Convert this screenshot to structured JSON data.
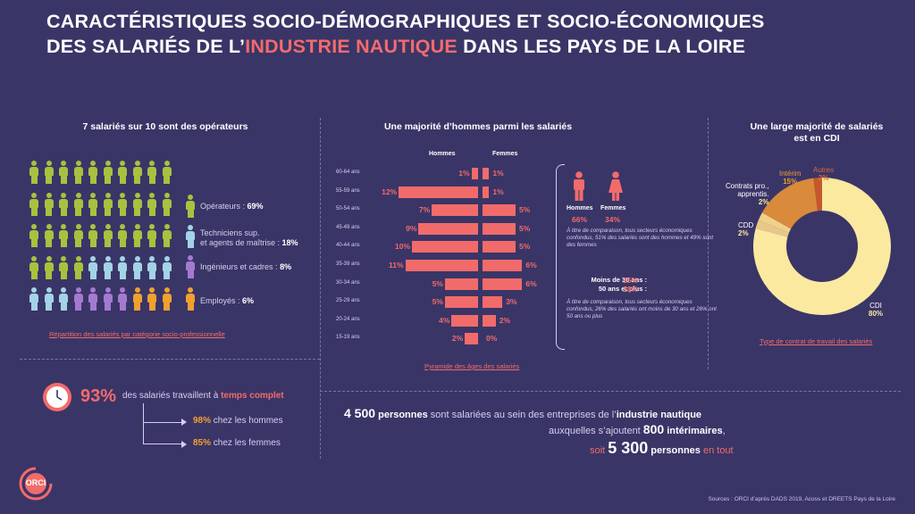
{
  "title": {
    "line1": "CARACTÉRISTIQUES SOCIO-DÉMOGRAPHIQUES ET SOCIO-ÉCONOMIQUES",
    "line2_pre": "DES SALARIÉS DE L’",
    "line2_hl": "INDUSTRIE NAUTIQUE",
    "line2_post": " DANS LES PAYS DE LA LOIRE"
  },
  "colors": {
    "background": "#3a3567",
    "accent": "#f26b6b",
    "operateurs": "#a8c23f",
    "techniciens": "#a3d3e6",
    "ingenieurs": "#a47ad1",
    "employes": "#f0a030"
  },
  "operateurs_section": {
    "heading": "7 salariés sur 10 sont des opérateurs",
    "grid_rows": [
      [
        "o",
        "o",
        "o",
        "o",
        "o",
        "o",
        "o",
        "o",
        "o",
        "o"
      ],
      [
        "o",
        "o",
        "o",
        "o",
        "o",
        "o",
        "o",
        "o",
        "o",
        "o"
      ],
      [
        "o",
        "o",
        "o",
        "o",
        "o",
        "o",
        "o",
        "o",
        "o",
        "o"
      ],
      [
        "o",
        "o",
        "o",
        "o",
        "t",
        "t",
        "t",
        "t",
        "t",
        "t"
      ],
      [
        "t",
        "t",
        "t",
        "i",
        "i",
        "i",
        "i",
        "e",
        "e",
        "e"
      ]
    ],
    "legend": [
      {
        "key": "o",
        "label": "Opérateurs : ",
        "value": "69%"
      },
      {
        "key": "t",
        "label": "Techniciens sup.",
        "label2": "et agents de maîtrise : ",
        "value": "18%"
      },
      {
        "key": "i",
        "label": "Ingénieurs et cadres : ",
        "value": "8%"
      },
      {
        "key": "e",
        "label": "Employés : ",
        "value": "6%"
      }
    ],
    "caption": "Répartition des salariés par catégorie socio-professionnelle"
  },
  "pyramid_section": {
    "heading": "Une majorité d’hommes parmi les salariés",
    "col_men": "Hommes",
    "col_women": "Femmes",
    "caption": "Pyramide des âges des salariés",
    "chart_data": {
      "type": "bar",
      "categories": [
        "60-64 ans",
        "55-59 ans",
        "50-54 ans",
        "45-49 ans",
        "40-44 ans",
        "35-39 ans",
        "30-34 ans",
        "25-29 ans",
        "20-24 ans",
        "15-19 ans"
      ],
      "series": [
        {
          "name": "Hommes",
          "values": [
            1,
            12,
            7,
            9,
            10,
            11,
            5,
            5,
            4,
            2
          ],
          "labels": [
            "1%",
            "12%",
            "7%",
            "9%",
            "10%",
            "11%",
            "5%",
            "5%",
            "4%",
            "2%"
          ]
        },
        {
          "name": "Femmes",
          "values": [
            1,
            1,
            5,
            5,
            5,
            6,
            6,
            3,
            2,
            0
          ],
          "labels": [
            "1%",
            "1%",
            "5%",
            "5%",
            "5%",
            "6%",
            "6%",
            "3%",
            "2%",
            "0%"
          ]
        }
      ]
    },
    "gender": {
      "men_label": "Hommes",
      "men_value": "66%",
      "women_label": "Femmes",
      "women_value": "34%"
    },
    "note1": "À titre de comparaison, tous secteurs économiques confondus, 51% des salariés sont des hommes et 49% sont des femmes",
    "age_stats": {
      "under30_label": "Moins de 30 ans :",
      "under30_value": "15%",
      "over50_label": "50 ans et plus :",
      "over50_value": "28%"
    },
    "note2": "À titre de comparaison, tous secteurs économiques confondus, 26% des salariés ont moins de 30 ans et 26% ont 50 ans ou plus"
  },
  "cdi_section": {
    "heading_line1": "Une large majorité de salariés",
    "heading_line2": "est en CDI",
    "caption": "Type de contrat de travail des salariés",
    "chart_data": {
      "type": "pie",
      "categories": [
        "CDI",
        "CDD",
        "Contrats pro., apprentis.",
        "Intérim",
        "Autres"
      ],
      "values": [
        80,
        2,
        2,
        15,
        2
      ],
      "colors": [
        "#fbe9a0",
        "#e8c88a",
        "#f0d08a",
        "#d98a3a",
        "#c4572e"
      ],
      "labels": [
        {
          "name": "CDI",
          "value": "80%"
        },
        {
          "name": "CDD",
          "value": "2%"
        },
        {
          "name1": "Contrats pro.,",
          "name2": "apprentis.",
          "value": "2%"
        },
        {
          "name": "Intérim",
          "value": "15%"
        },
        {
          "name": "Autres",
          "value": "2%"
        }
      ]
    }
  },
  "temps_complet": {
    "big_value": "93%",
    "text_pre": "des salariés travaillent à ",
    "text_bold": "temps complet",
    "men_value": "98%",
    "men_text": " chez les hommes",
    "women_value": "85%",
    "women_text": " chez les femmes"
  },
  "totals": {
    "line1_num": "4 500",
    "line1_w1": " personnes",
    "line1_text": " sont salariées au sein des entreprises de l’",
    "line1_bold": "industrie nautique",
    "line2_text": "auxquelles s’ajoutent ",
    "line2_num": "800",
    "line2_bold": " intérimaires",
    "line2_end": ",",
    "line3_text": "soit ",
    "line3_num": "5 300",
    "line3_bold": " personnes",
    "line3_end": " en tout"
  },
  "logo_text": "ORCI",
  "sources": "Sources : ORCI d’après DADS 2019, Acoss et DREETS Pays de la Loire"
}
